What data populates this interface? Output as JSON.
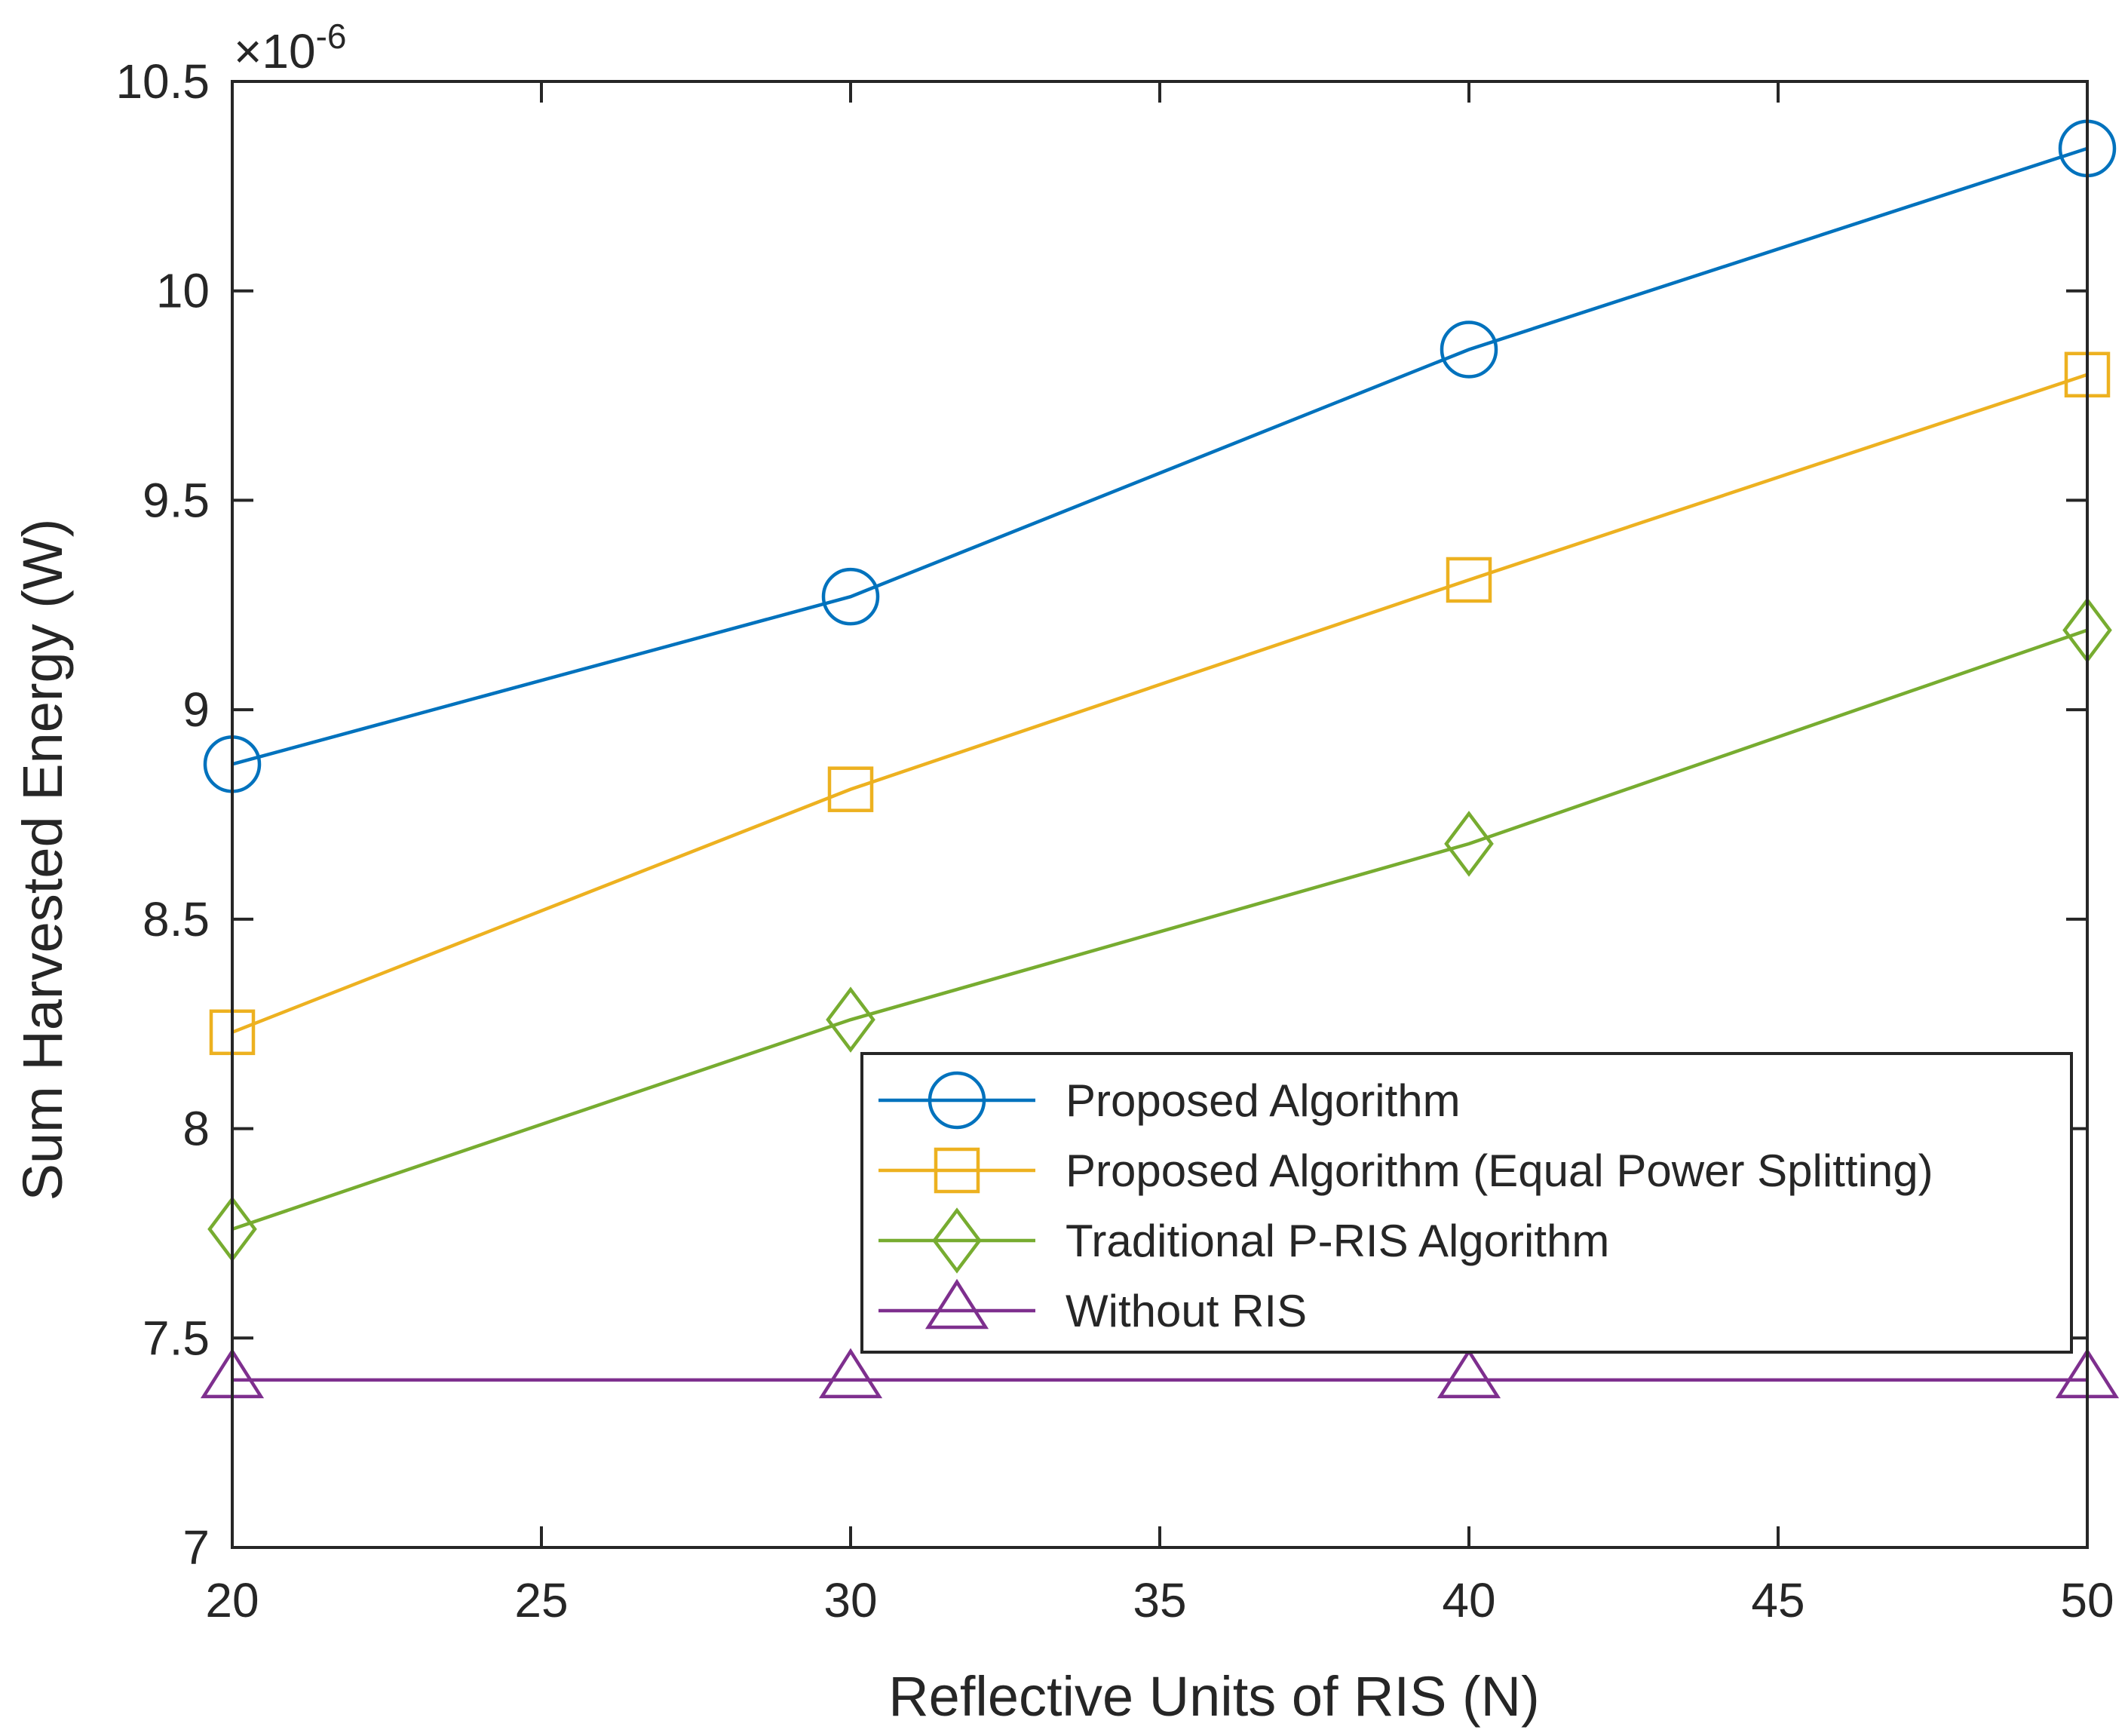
{
  "chart_data": {
    "type": "line",
    "title": "",
    "xlabel": "Reflective Units of RIS (N)",
    "ylabel": "Sum Harvested Energy (W)",
    "y_exponent_prefix": "×10",
    "y_exponent": "-6",
    "x": [
      20,
      30,
      40,
      50
    ],
    "xlim": [
      20,
      50
    ],
    "ylim": [
      7,
      10.5
    ],
    "xticks": [
      20,
      25,
      30,
      35,
      40,
      45,
      50
    ],
    "xtick_labels": [
      "20",
      "25",
      "30",
      "35",
      "40",
      "45",
      "50"
    ],
    "yticks": [
      7,
      7.5,
      8,
      8.5,
      9,
      9.5,
      10,
      10.5
    ],
    "ytick_labels": [
      "7",
      "7.5",
      "8",
      "8.5",
      "9",
      "9.5",
      "10",
      "10.5"
    ],
    "grid": false,
    "legend_position": "lower-right",
    "series": [
      {
        "name": "Proposed Algorithm",
        "marker": "circle",
        "color": "#0072BD",
        "values": [
          8.87,
          9.27,
          9.86,
          10.34
        ]
      },
      {
        "name": "Proposed Algorithm (Equal Power Splitting)",
        "marker": "square",
        "color": "#EDB120",
        "values": [
          8.23,
          8.81,
          9.31,
          9.8
        ]
      },
      {
        "name": "Traditional P-RIS Algorithm",
        "marker": "diamond",
        "color": "#77AC30",
        "values": [
          7.76,
          8.26,
          8.68,
          9.19
        ]
      },
      {
        "name": "Without RIS",
        "marker": "triangle",
        "color": "#7E2F8E",
        "values": [
          7.4,
          7.4,
          7.4,
          7.4
        ]
      }
    ]
  }
}
